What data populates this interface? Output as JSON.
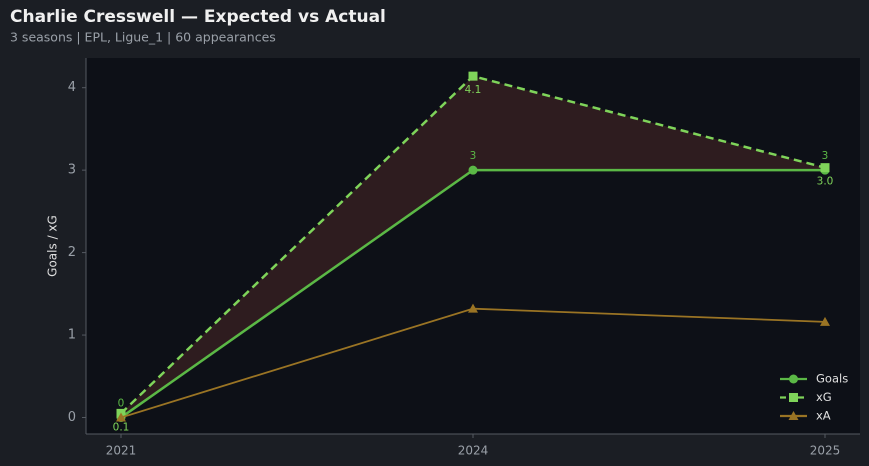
{
  "chart_data": {
    "type": "line",
    "title": "Charlie Cresswell — Expected vs Actual",
    "subtitle": "3 seasons | EPL, Ligue_1 | 60 appearances",
    "y_label": "Goals / xG",
    "categories": [
      "2021",
      "2024",
      "2025"
    ],
    "series": [
      {
        "name": "Goals",
        "color": "#5bb846",
        "marker": "circle",
        "dash": false,
        "values": [
          0,
          3,
          3
        ],
        "value_labels": [
          "0",
          "3",
          "3"
        ],
        "label_side": "above"
      },
      {
        "name": "xG",
        "color": "#7fd45a",
        "marker": "square",
        "dash": true,
        "values": [
          0.05,
          4.14,
          3.03
        ],
        "value_labels": [
          "0.1",
          "4.1",
          "3.0"
        ],
        "label_side": "below"
      },
      {
        "name": "xA",
        "color": "#9a7424",
        "marker": "triangle",
        "dash": false,
        "values": [
          0,
          1.32,
          1.16
        ]
      }
    ],
    "shade_between": [
      0,
      1
    ],
    "shade_color": "#2e1c1f",
    "ylim": [
      -0.2,
      4.36
    ],
    "yticks": [
      0,
      1,
      2,
      3,
      4
    ],
    "grid": false,
    "legend": "lower right"
  }
}
